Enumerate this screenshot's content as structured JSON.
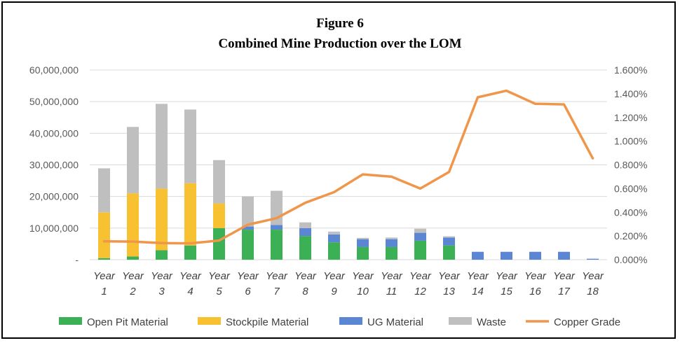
{
  "figure_label": "Figure 6",
  "colors": {
    "open_pit": "#3cb054",
    "stockpile": "#f7c132",
    "ug": "#5b86d3",
    "waste": "#bfbfbf",
    "copper": "#f0964a",
    "grid": "#d9d9d9"
  },
  "chart_data": {
    "type": "bar",
    "title": "Combined Mine Production over the LOM",
    "categories": [
      "Year 1",
      "Year 2",
      "Year 3",
      "Year 4",
      "Year 5",
      "Year 6",
      "Year 7",
      "Year 8",
      "Year 9",
      "Year 10",
      "Year 11",
      "Year 12",
      "Year 13",
      "Year 14",
      "Year 15",
      "Year 16",
      "Year 17",
      "Year 18"
    ],
    "stacked": true,
    "series": [
      {
        "name": "Open Pit Material",
        "type": "bar",
        "values": [
          500000,
          1000000,
          3000000,
          4500000,
          10000000,
          9500000,
          9500000,
          7500000,
          5500000,
          4000000,
          4000000,
          6000000,
          4500000,
          0,
          0,
          0,
          0,
          0
        ]
      },
      {
        "name": "Stockpile Material",
        "type": "bar",
        "values": [
          14500000,
          20000000,
          19500000,
          19700000,
          7800000,
          0,
          0,
          0,
          0,
          0,
          0,
          0,
          0,
          0,
          0,
          0,
          0,
          0
        ]
      },
      {
        "name": "UG Material",
        "type": "bar",
        "values": [
          0,
          0,
          0,
          0,
          0,
          1000000,
          1500000,
          2500000,
          2500000,
          2500000,
          2500000,
          2500000,
          2500000,
          2500000,
          2500000,
          2500000,
          2500000,
          300000
        ]
      },
      {
        "name": "Waste",
        "type": "bar",
        "values": [
          13900000,
          21000000,
          26800000,
          23300000,
          13700000,
          9500000,
          10800000,
          1800000,
          900000,
          400000,
          500000,
          1300000,
          400000,
          0,
          0,
          0,
          0,
          0
        ]
      },
      {
        "name": "Copper Grade",
        "type": "line",
        "axis": "right",
        "values": [
          0.155,
          0.153,
          0.14,
          0.138,
          0.162,
          0.295,
          0.35,
          0.48,
          0.57,
          0.72,
          0.7,
          0.6,
          0.74,
          1.37,
          1.425,
          1.315,
          1.31,
          0.855
        ]
      }
    ],
    "y_left": {
      "min": 0,
      "max": 60000000,
      "ticks": [
        "-",
        "10,000,000",
        "20,000,000",
        "30,000,000",
        "40,000,000",
        "50,000,000",
        "60,000,000"
      ]
    },
    "y_right": {
      "min": 0,
      "max": 1.6,
      "ticks": [
        "0.000%",
        "0.200%",
        "0.400%",
        "0.600%",
        "0.800%",
        "1.000%",
        "1.200%",
        "1.400%",
        "1.600%"
      ]
    },
    "x_ticks": [
      [
        "Year",
        "1"
      ],
      [
        "Year",
        "2"
      ],
      [
        "Year",
        "3"
      ],
      [
        "Year",
        "4"
      ],
      [
        "Year",
        "5"
      ],
      [
        "Year",
        "6"
      ],
      [
        "Year",
        "7"
      ],
      [
        "Year",
        "8"
      ],
      [
        "Year",
        "9"
      ],
      [
        "Year",
        "10"
      ],
      [
        "Year",
        "11"
      ],
      [
        "Year",
        "12"
      ],
      [
        "Year",
        "13"
      ],
      [
        "Year",
        "14"
      ],
      [
        "Year",
        "15"
      ],
      [
        "Year",
        "16"
      ],
      [
        "Year",
        "17"
      ],
      [
        "Year",
        "18"
      ]
    ],
    "grid": true,
    "legend_position": "bottom"
  }
}
